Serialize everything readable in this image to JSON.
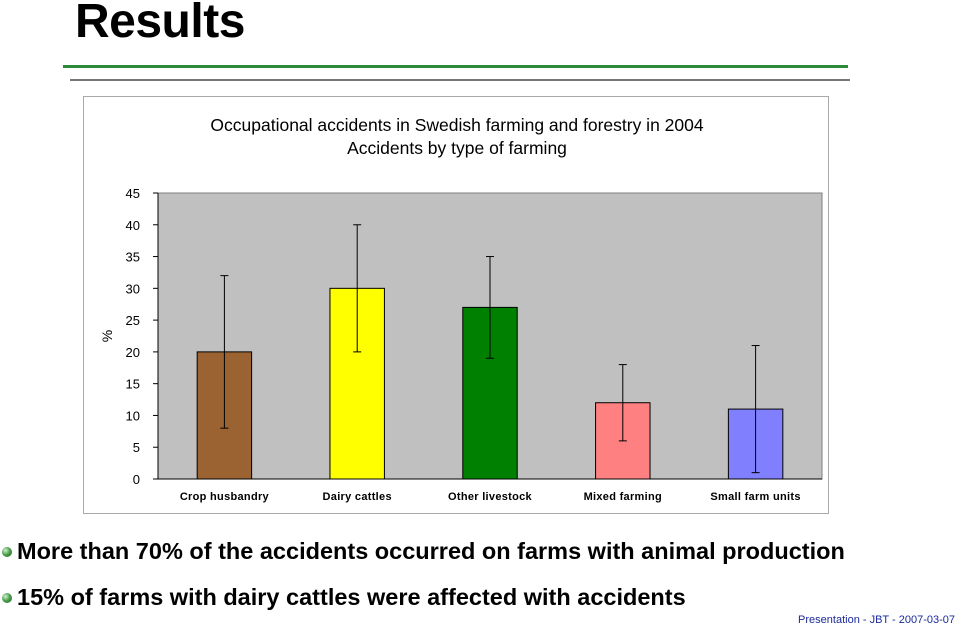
{
  "slide": {
    "title": "Results",
    "bullets": [
      "More than 70% of the accidents occurred on farms with animal production",
      "15% of farms with dairy cattles were affected with accidents"
    ],
    "footer": "Presentation  -  JBT  -  2007-03-07",
    "colors": {
      "rule_top": "#2b8a3a",
      "rule_bottom": "#777777",
      "footer": "#1a2a9a"
    }
  },
  "chart_data": {
    "type": "bar",
    "title": "Occupational accidents in Swedish farming and forestry in 2004",
    "subtitle": "Accidents by type of farming",
    "xlabel": "",
    "ylabel": "%",
    "ylim": [
      0,
      45
    ],
    "yticks": [
      0,
      5,
      10,
      15,
      20,
      25,
      30,
      35,
      40,
      45
    ],
    "grid": false,
    "legend": "none",
    "plot_background": "#c0c0c0",
    "categories": [
      "Crop husbandry",
      "Dairy cattles",
      "Other livestock",
      "Mixed farming",
      "Small farm units"
    ],
    "values": [
      20,
      30,
      27,
      12,
      11
    ],
    "error_low": [
      8,
      20,
      19,
      6,
      1
    ],
    "error_high": [
      32,
      40,
      35,
      18,
      21
    ],
    "bar_colors": [
      "#9b6232",
      "#ffff00",
      "#008000",
      "#ff8080",
      "#8080ff"
    ]
  }
}
